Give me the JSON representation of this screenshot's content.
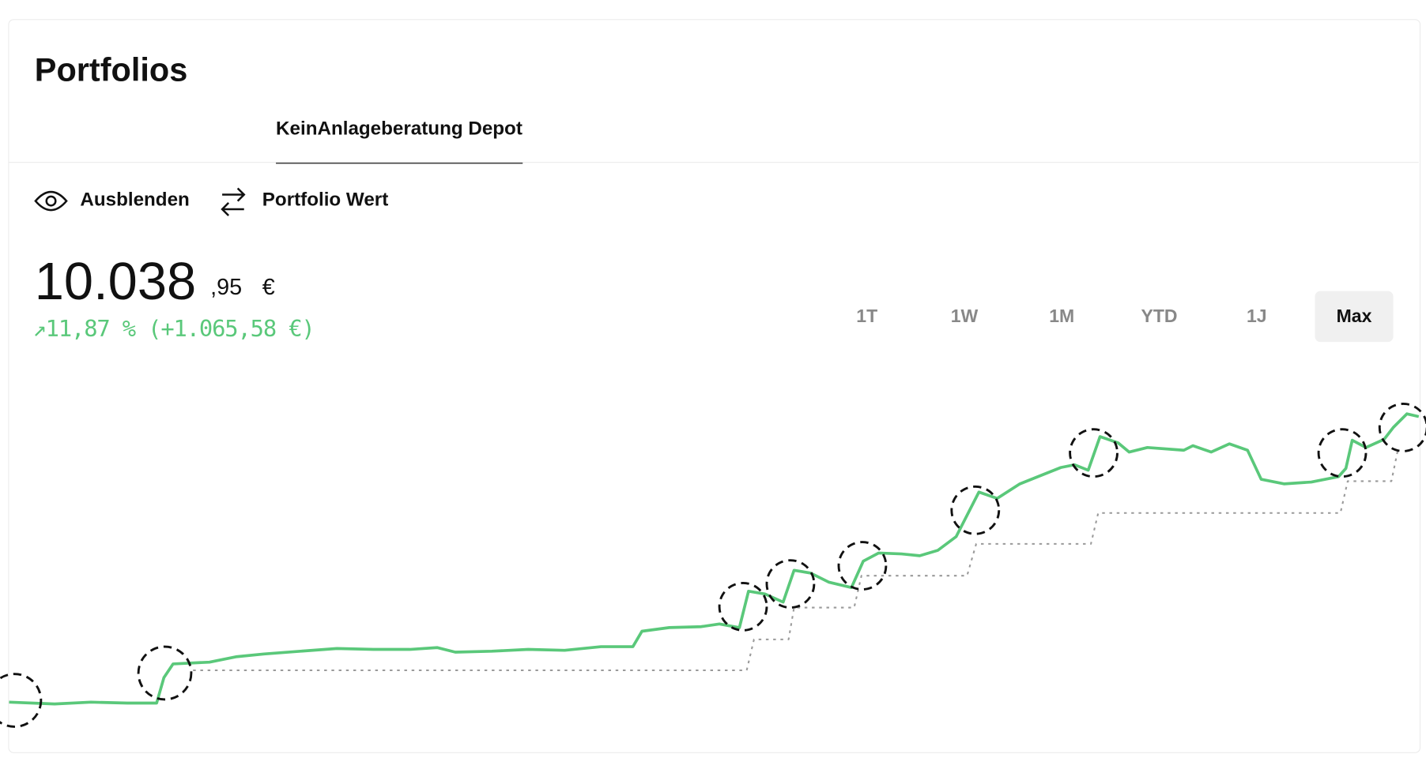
{
  "header": {
    "title": "Portfolios"
  },
  "tabs": [
    {
      "label": "KeinAnlageberatung Depot",
      "active": true
    }
  ],
  "actions": [
    "Ausblenden",
    "Portfolio Wert"
  ],
  "balance": {
    "integer": "10.038",
    "decimals": ",95",
    "currency": "€",
    "change": "↗11,87 % (+1.065,58 €)"
  },
  "ranges": {
    "options": [
      "1T",
      "1W",
      "1M",
      "YTD",
      "1J",
      "Max"
    ],
    "active": "Max"
  },
  "chart_data": {
    "type": "line",
    "xlim": [
      0,
      1548
    ],
    "ylim": [
      0,
      400
    ],
    "series": [
      {
        "color": "#5ac87a",
        "style": "solid",
        "x": [
          0,
          50,
          90,
          130,
          162,
          170,
          180,
          220,
          250,
          280,
          320,
          360,
          400,
          440,
          470,
          490,
          530,
          570,
          610,
          650,
          685,
          695,
          725,
          760,
          780,
          802,
          812,
          830,
          850,
          862,
          880,
          900,
          925,
          938,
          955,
          980,
          1000,
          1020,
          1040,
          1065,
          1085,
          1110,
          1130,
          1155,
          1170,
          1185,
          1198,
          1218,
          1230,
          1250,
          1290,
          1300,
          1320,
          1340,
          1360,
          1375,
          1400,
          1430,
          1460,
          1468,
          1475,
          1490,
          1510,
          1520,
          1535,
          1548
        ],
        "values": [
          28,
          26,
          28,
          27,
          27,
          55,
          70,
          72,
          78,
          81,
          84,
          87,
          86,
          86,
          88,
          83,
          84,
          86,
          85,
          89,
          89,
          106,
          110,
          111,
          114,
          110,
          150,
          147,
          138,
          173,
          170,
          160,
          154,
          183,
          192,
          191,
          189,
          195,
          210,
          259,
          252,
          268,
          276,
          286,
          289,
          283,
          320,
          313,
          303,
          308,
          305,
          310,
          303,
          312,
          305,
          273,
          268,
          270,
          276,
          285,
          316,
          308,
          317,
          330,
          345,
          342
        ]
      },
      {
        "color": "#9a9a9a",
        "style": "dotted",
        "x": [
          202,
          810,
          818,
          856,
          862,
          928,
          936,
          1052,
          1062,
          1188,
          1196,
          1462,
          1470,
          1518,
          1525
        ],
        "values": [
          63,
          63,
          97,
          97,
          132,
          132,
          167,
          167,
          202,
          202,
          236,
          236,
          271,
          271,
          305
        ]
      }
    ]
  }
}
